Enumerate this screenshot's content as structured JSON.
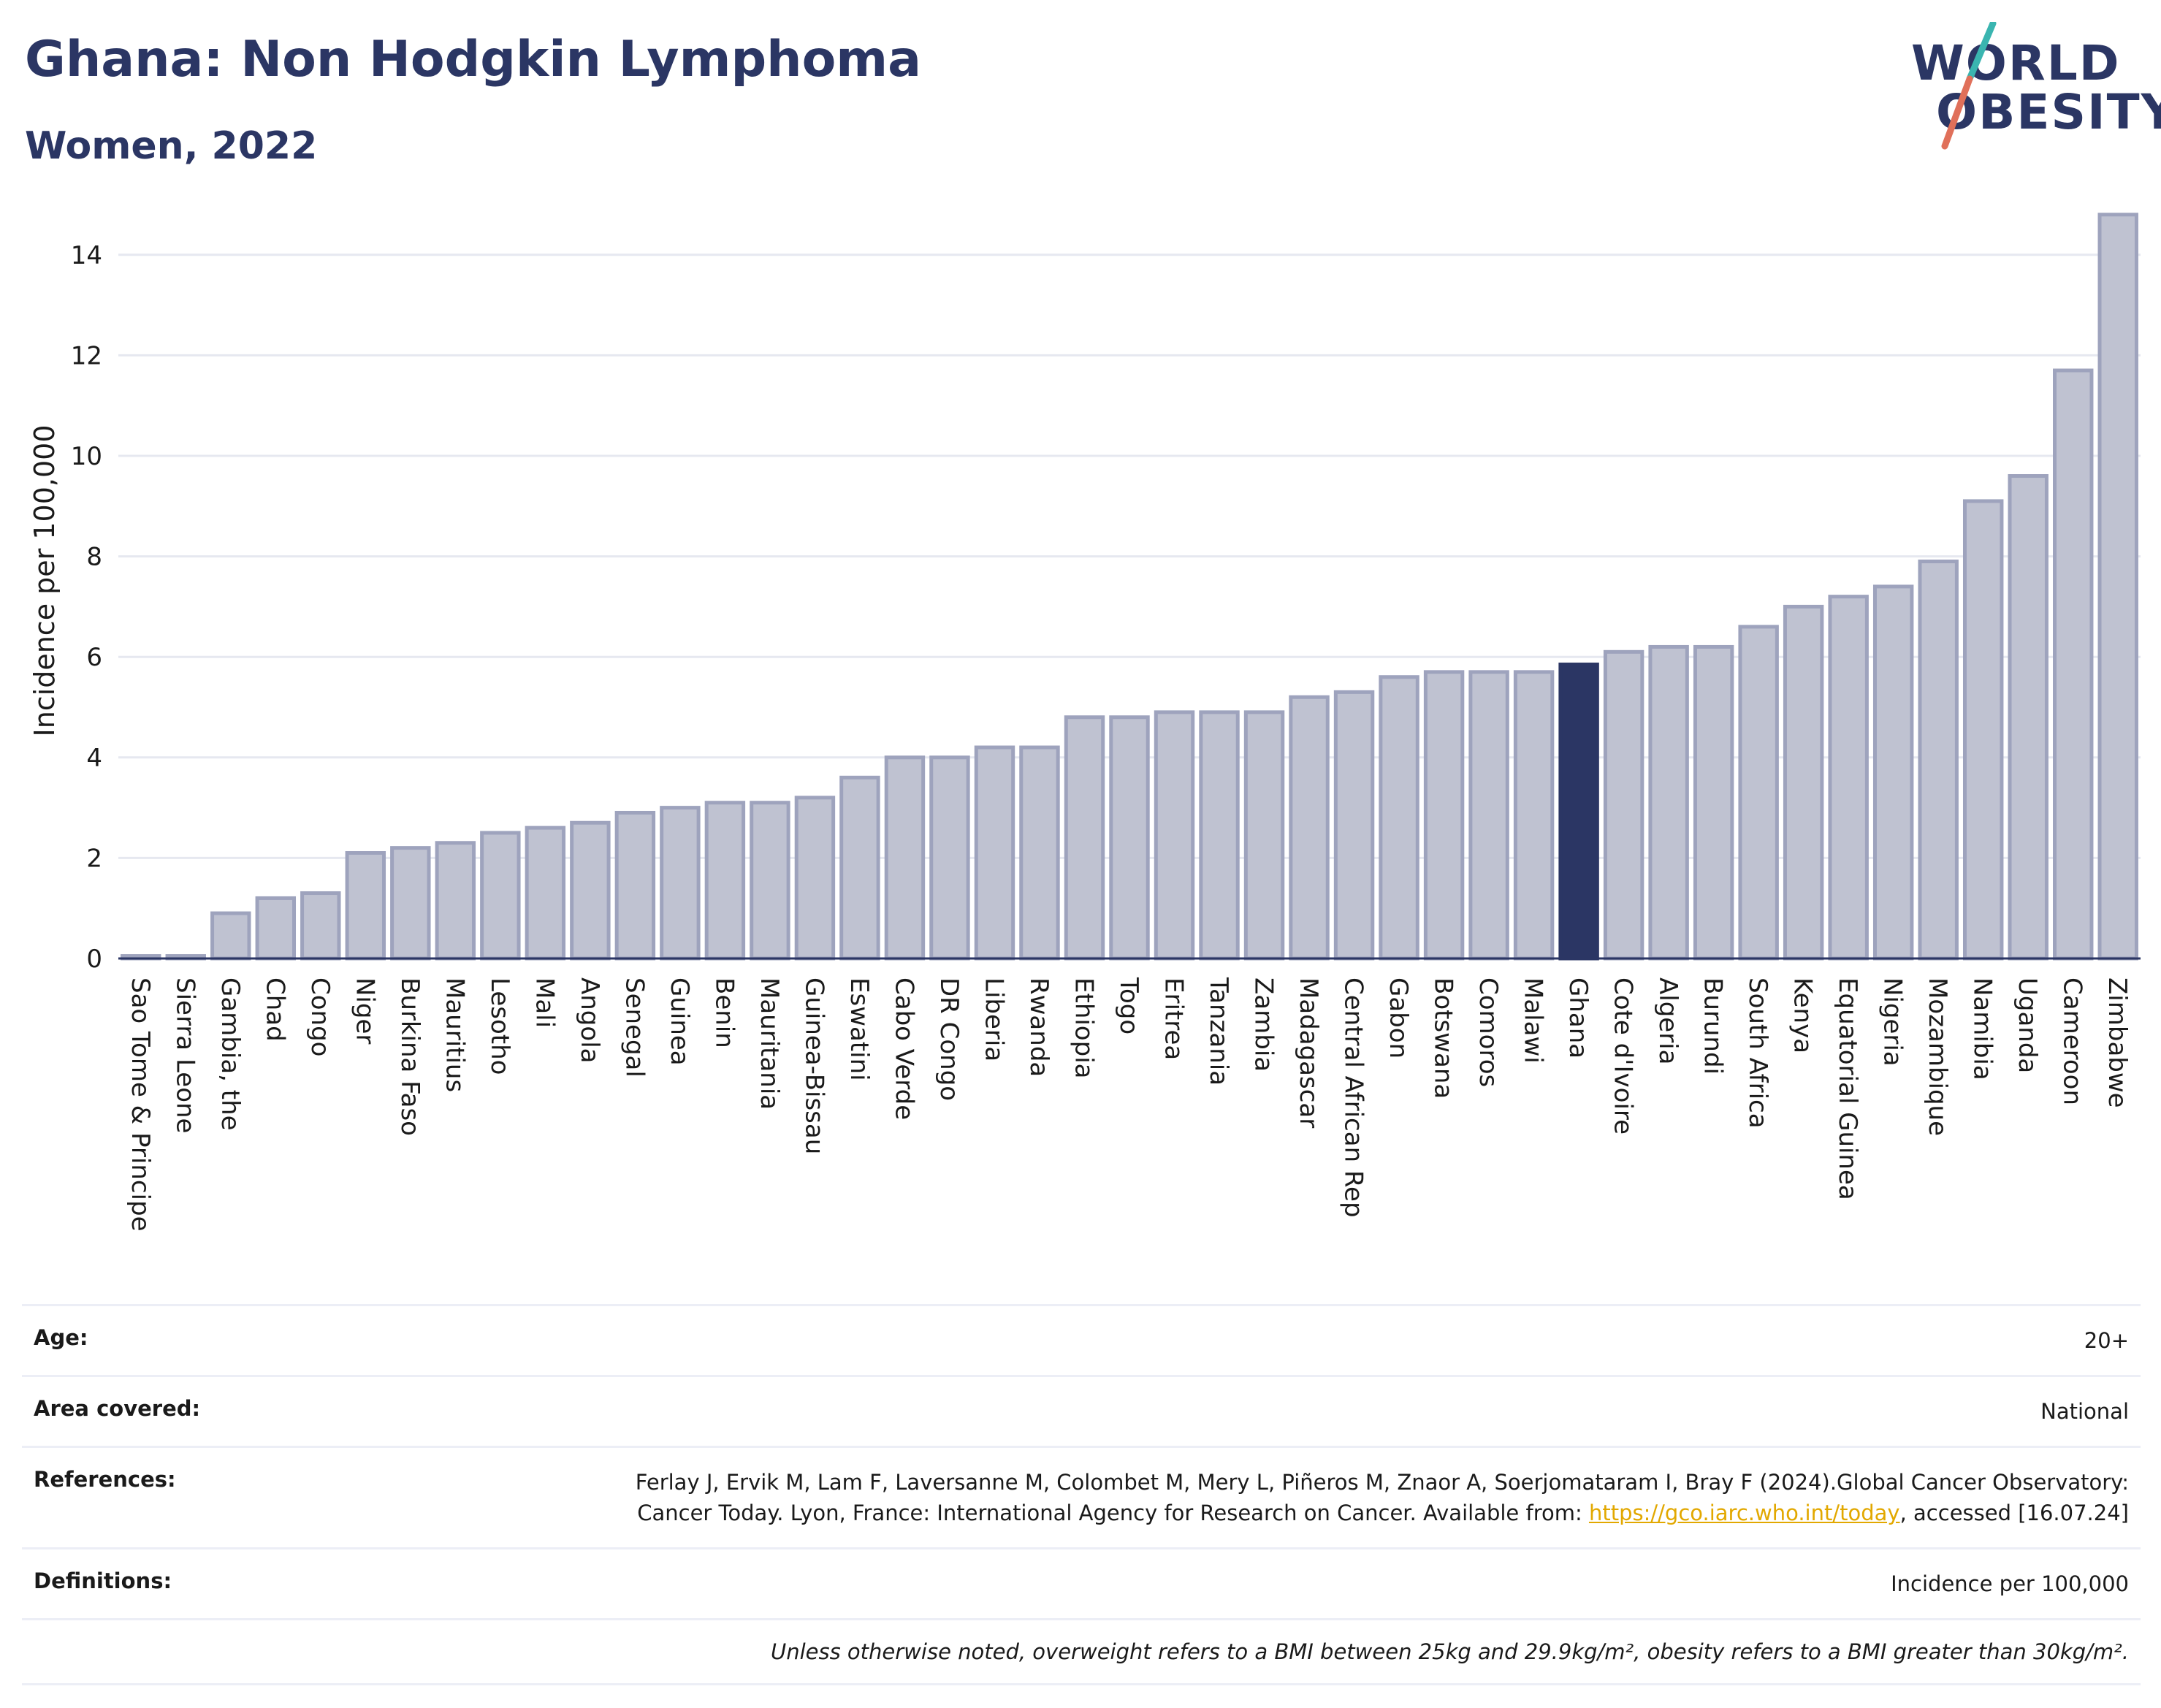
{
  "header": {
    "title": "Ghana: Non Hodgkin Lymphoma",
    "subtitle": "Women, 2022"
  },
  "logo": {
    "line1": "WORLD",
    "line2": "OBESITY",
    "colors": {
      "text": "#2b3664",
      "slash_top": "#3ab5b0",
      "slash_bottom": "#e0705a"
    }
  },
  "chart_data": {
    "type": "bar",
    "ylabel": "Incidence per 100,000",
    "xlabel": "",
    "ylim": [
      0,
      15
    ],
    "yticks": [
      0,
      2,
      4,
      6,
      8,
      10,
      12,
      14
    ],
    "grid": true,
    "legend": "none",
    "highlight": "Ghana",
    "colors": {
      "bar": "#bfc2d1",
      "bar_edge": "#9ea3bd",
      "highlight": "#2b3664",
      "grid": "#e6e8f0"
    },
    "categories": [
      "Sao Tome & Principe",
      "Sierra Leone",
      "Gambia, the",
      "Chad",
      "Congo",
      "Niger",
      "Burkina Faso",
      "Mauritius",
      "Lesotho",
      "Mali",
      "Angola",
      "Senegal",
      "Guinea",
      "Benin",
      "Mauritania",
      "Guinea-Bissau",
      "Eswatini",
      "Cabo Verde",
      "DR Congo",
      "Liberia",
      "Rwanda",
      "Ethiopia",
      "Togo",
      "Eritrea",
      "Tanzania",
      "Zambia",
      "Madagascar",
      "Central African Rep",
      "Gabon",
      "Botswana",
      "Comoros",
      "Malawi",
      "Ghana",
      "Cote d'Ivoire",
      "Algeria",
      "Burundi",
      "South Africa",
      "Kenya",
      "Equatorial Guinea",
      "Nigeria",
      "Mozambique",
      "Namibia",
      "Uganda",
      "Cameroon",
      "Zimbabwe"
    ],
    "values": [
      0.05,
      0.05,
      0.9,
      1.2,
      1.3,
      2.1,
      2.2,
      2.3,
      2.5,
      2.6,
      2.7,
      2.9,
      3.0,
      3.1,
      3.1,
      3.2,
      3.6,
      4.0,
      4.0,
      4.2,
      4.2,
      4.8,
      4.8,
      4.9,
      4.9,
      4.9,
      5.2,
      5.3,
      5.6,
      5.7,
      5.7,
      5.7,
      5.85,
      6.1,
      6.2,
      6.2,
      6.6,
      7.0,
      7.2,
      7.4,
      7.9,
      9.1,
      9.6,
      11.7,
      14.8
    ]
  },
  "info": {
    "age_label": "Age:",
    "age_value": "20+",
    "area_label": "Area covered:",
    "area_value": "National",
    "references_label": "References:",
    "references_text_1": "Ferlay J, Ervik M, Lam F, Laversanne M, Colombet M, Mery L, Piñeros M, Znaor A, Soerjomataram I, Bray F (2024).Global Cancer Observatory: Cancer Today. Lyon, France: International Agency for Research on Cancer. Available from: ",
    "references_link": "https://gco.iarc.who.int/today",
    "references_text_2": ", accessed [16.07.24]",
    "definitions_label": "Definitions:",
    "definitions_value": "Incidence per 100,000",
    "note": "Unless otherwise noted, overweight refers to a BMI between 25kg and 29.9kg/m², obesity refers to a BMI greater than 30kg/m²."
  }
}
